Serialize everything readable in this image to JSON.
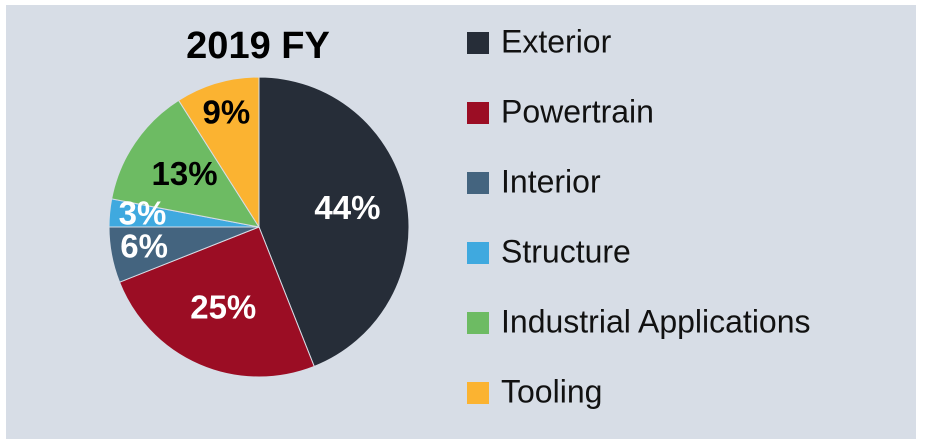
{
  "chart_data": {
    "type": "pie",
    "title": "2019 FY",
    "categories": [
      "Exterior",
      "Powertrain",
      "Interior",
      "Structure",
      "Industrial Applications",
      "Tooling"
    ],
    "values": [
      44,
      25,
      6,
      3,
      13,
      9
    ],
    "value_labels": [
      "44%",
      "25%",
      "6%",
      "3%",
      "13%",
      "9%"
    ],
    "colors": [
      "#262d38",
      "#9b0d24",
      "#44647f",
      "#3fa9df",
      "#6dbb63",
      "#fbb331"
    ],
    "legend": "right"
  }
}
